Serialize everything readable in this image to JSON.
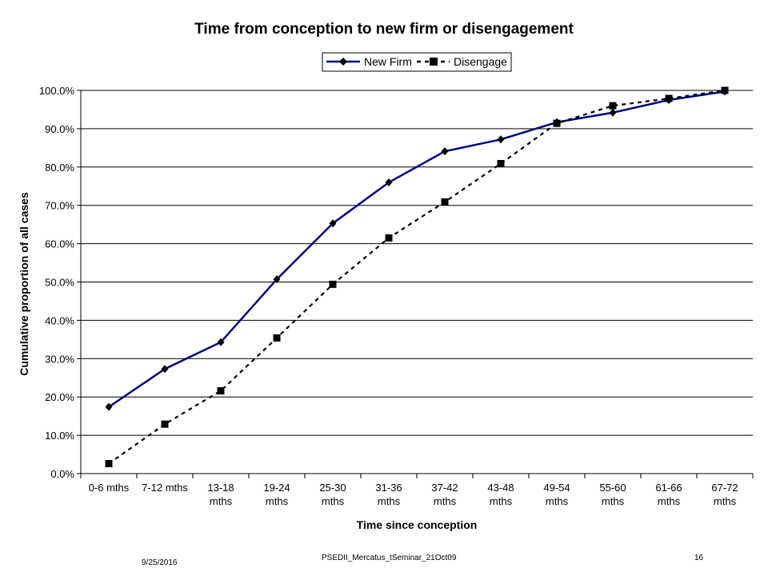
{
  "chart_data": {
    "type": "line",
    "title": "Time from conception to new firm or disengagement",
    "xlabel": "Time since conception",
    "ylabel": "Cumulative proportion of all cases",
    "categories": [
      [
        "0-6 mths"
      ],
      [
        "7-12 mths"
      ],
      [
        "13-18",
        "mths"
      ],
      [
        "19-24",
        "mths"
      ],
      [
        "25-30",
        "mths"
      ],
      [
        "31-36",
        "mths"
      ],
      [
        "37-42",
        "mths"
      ],
      [
        "43-48",
        "mths"
      ],
      [
        "49-54",
        "mths"
      ],
      [
        "55-60",
        "mths"
      ],
      [
        "61-66",
        "mths"
      ],
      [
        "67-72",
        "mths"
      ]
    ],
    "y_ticks": [
      "0.0%",
      "10.0%",
      "20.0%",
      "30.0%",
      "40.0%",
      "50.0%",
      "60.0%",
      "70.0%",
      "80.0%",
      "90.0%",
      "100.0%"
    ],
    "ylim": [
      0,
      100
    ],
    "grid": true,
    "legend_position": "top",
    "series": [
      {
        "name": "New Firm",
        "style": "solid",
        "marker": "diamond",
        "color": "#000080",
        "values": [
          17.4,
          27.3,
          34.3,
          50.7,
          65.3,
          76.0,
          84.1,
          87.2,
          91.7,
          94.2,
          97.5,
          99.7
        ]
      },
      {
        "name": "Disengage",
        "style": "dashed",
        "marker": "square",
        "color": "#000000",
        "values": [
          2.6,
          12.9,
          21.6,
          35.4,
          49.4,
          61.5,
          70.9,
          80.9,
          91.4,
          96.0,
          97.9,
          100.0
        ]
      }
    ]
  },
  "footer": {
    "date": "9/25/2016",
    "source": "PSEDII_Mercatus_tSeminar_21Oct09",
    "page": "16"
  }
}
